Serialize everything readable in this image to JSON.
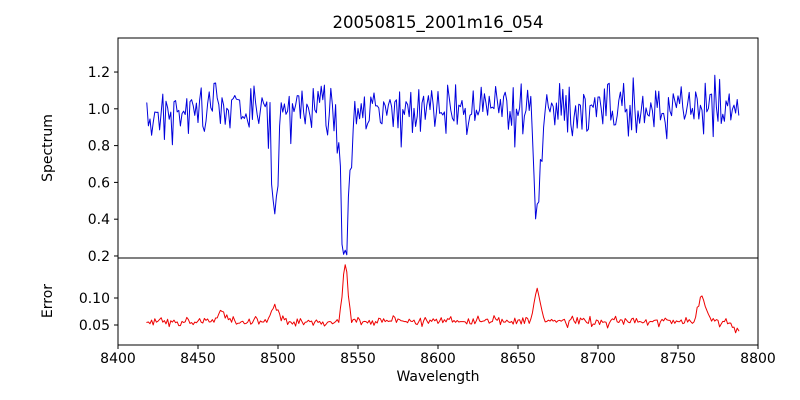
{
  "figure": {
    "title": "20050815_2001m16_054",
    "xlabel": "Wavelength",
    "background_color": "#ffffff",
    "spine_color": "#000000"
  },
  "chart_data": [
    {
      "type": "line",
      "name": "spectrum-panel",
      "title": "20050815_2001m16_054",
      "xlabel": "Wavelength",
      "ylabel": "Spectrum",
      "color": "#0000dd",
      "grid": false,
      "legend": null,
      "xlim": [
        8400,
        8800
      ],
      "ylim": [
        0.189,
        1.385
      ],
      "xticks": [
        8400,
        8450,
        8500,
        8550,
        8600,
        8650,
        8700,
        8750,
        8800
      ],
      "xtick_labels": [
        "8400",
        "8450",
        "8500",
        "8550",
        "8600",
        "8650",
        "8700",
        "8750",
        "8800"
      ],
      "yticks": [
        0.2,
        0.4,
        0.6,
        0.8,
        1.0,
        1.2
      ],
      "ytick_labels": [
        "0.2",
        "0.4",
        "0.6",
        "0.8",
        "1.0",
        "1.2"
      ],
      "x_start": 8418,
      "x_end": 8788,
      "x_step": 1,
      "baseline": 1.0,
      "noise_sigma": 0.075,
      "seed": 1234567,
      "lines": [
        {
          "center": 8498.0,
          "amplitude": -0.62,
          "sigma": 1.7,
          "note": "absorption dip, min ~0.37"
        },
        {
          "center": 8542.0,
          "amplitude": -0.76,
          "sigma": 2.6,
          "note": "absorption dip, min ~0.24"
        },
        {
          "center": 8662.0,
          "amplitude": -0.62,
          "sigma": 1.9,
          "note": "absorption dip, min ~0.37"
        }
      ]
    },
    {
      "type": "line",
      "name": "error-panel",
      "title": "",
      "xlabel": "Wavelength",
      "ylabel": "Error",
      "color": "#ee0000",
      "grid": false,
      "legend": null,
      "xlim": [
        8400,
        8800
      ],
      "ylim": [
        0.013,
        0.174
      ],
      "xticks": [
        8400,
        8450,
        8500,
        8550,
        8600,
        8650,
        8700,
        8750,
        8800
      ],
      "xtick_labels": [
        "8400",
        "8450",
        "8500",
        "8550",
        "8600",
        "8650",
        "8700",
        "8750",
        "8800"
      ],
      "yticks": [
        0.05,
        0.1
      ],
      "ytick_labels": [
        "0.05",
        "0.10"
      ],
      "x_start": 8418,
      "x_end": 8788,
      "x_step": 1,
      "baseline": 0.057,
      "noise_sigma": 0.0042,
      "seed": 424242,
      "lines": [
        {
          "center": 8465.0,
          "amplitude": 0.016,
          "sigma": 2.0,
          "note": "small error bump"
        },
        {
          "center": 8498.0,
          "amplitude": 0.033,
          "sigma": 1.8,
          "note": "error bump at first dip"
        },
        {
          "center": 8542.0,
          "amplitude": 0.105,
          "sigma": 1.6,
          "note": "error spike, peak ~0.16"
        },
        {
          "center": 8662.0,
          "amplitude": 0.058,
          "sigma": 1.8,
          "note": "error bump, peak ~0.12"
        },
        {
          "center": 8765.0,
          "amplitude": 0.045,
          "sigma": 2.2,
          "note": "error bump near 8765"
        },
        {
          "center": 8787.0,
          "amplitude": -0.018,
          "sigma": 2.5,
          "note": "drop at red edge"
        }
      ]
    }
  ]
}
